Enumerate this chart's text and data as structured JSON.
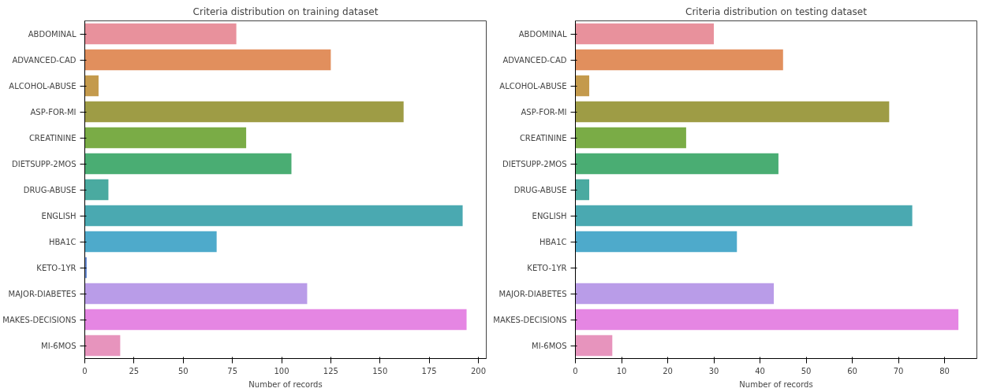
{
  "chart_data": [
    {
      "type": "bar",
      "orientation": "horizontal",
      "title": "Criteria distribution on training dataset",
      "xlabel": "Number of records",
      "categories": [
        "ABDOMINAL",
        "ADVANCED-CAD",
        "ALCOHOL-ABUSE",
        "ASP-FOR-MI",
        "CREATININE",
        "DIETSUPP-2MOS",
        "DRUG-ABUSE",
        "ENGLISH",
        "HBA1C",
        "KETO-1YR",
        "MAJOR-DIABETES",
        "MAKES-DECISIONS",
        "MI-6MOS"
      ],
      "values": [
        77,
        125,
        7,
        162,
        82,
        105,
        12,
        192,
        67,
        1,
        113,
        194,
        18
      ],
      "colors": [
        "#e8919c",
        "#e18f5d",
        "#c49a4c",
        "#9e9c45",
        "#7aac46",
        "#4aad73",
        "#4aaaa0",
        "#4aa9b1",
        "#4eaacb",
        "#6b8fd6",
        "#b99ce8",
        "#e586e3",
        "#e794bd"
      ],
      "xlim": [
        0,
        204
      ],
      "xticks": [
        0,
        25,
        50,
        75,
        100,
        125,
        150,
        175,
        200
      ],
      "grid": false
    },
    {
      "type": "bar",
      "orientation": "horizontal",
      "title": "Criteria distribution on testing dataset",
      "xlabel": "Number of records",
      "categories": [
        "ABDOMINAL",
        "ADVANCED-CAD",
        "ALCOHOL-ABUSE",
        "ASP-FOR-MI",
        "CREATININE",
        "DIETSUPP-2MOS",
        "DRUG-ABUSE",
        "ENGLISH",
        "HBA1C",
        "KETO-1YR",
        "MAJOR-DIABETES",
        "MAKES-DECISIONS",
        "MI-6MOS"
      ],
      "values": [
        30,
        45,
        3,
        68,
        24,
        44,
        3,
        73,
        35,
        0,
        43,
        83,
        8
      ],
      "colors": [
        "#e8919c",
        "#e18f5d",
        "#c49a4c",
        "#9e9c45",
        "#7aac46",
        "#4aad73",
        "#4aaaa0",
        "#4aa9b1",
        "#4eaacb",
        "#6b8fd6",
        "#b99ce8",
        "#e586e3",
        "#e794bd"
      ],
      "xlim": [
        0,
        87
      ],
      "xticks": [
        0,
        10,
        20,
        30,
        40,
        50,
        60,
        70,
        80
      ],
      "grid": false
    }
  ]
}
